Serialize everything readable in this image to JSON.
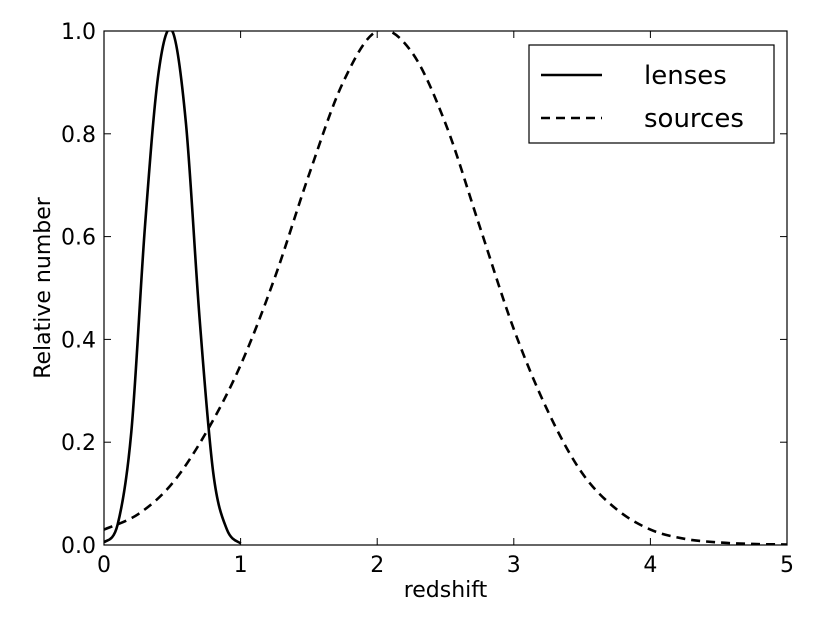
{
  "chart_data": {
    "type": "line",
    "xlabel": "redshift",
    "ylabel": "Relative number",
    "xlim": [
      0,
      5
    ],
    "ylim": [
      0.0,
      1.0
    ],
    "xticks": [
      "0",
      "1",
      "2",
      "3",
      "4",
      "5"
    ],
    "yticks": [
      "0.0",
      "0.2",
      "0.4",
      "0.6",
      "0.8",
      "1.0"
    ],
    "grid": false,
    "legend_position": "top-right",
    "series": [
      {
        "name": "lenses",
        "style": "solid",
        "color": "#000000",
        "x": [
          0.0,
          0.1,
          0.2,
          0.3,
          0.4,
          0.5,
          0.6,
          0.7,
          0.8,
          0.9,
          1.0
        ],
        "y": [
          0.005,
          0.04,
          0.22,
          0.62,
          0.92,
          1.0,
          0.82,
          0.44,
          0.14,
          0.03,
          0.003
        ]
      },
      {
        "name": "sources",
        "style": "dashed",
        "color": "#000000",
        "x": [
          0.0,
          0.25,
          0.5,
          0.75,
          1.0,
          1.25,
          1.5,
          1.75,
          2.0,
          2.25,
          2.5,
          2.75,
          3.0,
          3.25,
          3.5,
          3.75,
          4.0,
          4.25,
          4.5,
          4.75,
          5.0
        ],
        "y": [
          0.03,
          0.06,
          0.12,
          0.22,
          0.35,
          0.52,
          0.72,
          0.9,
          1.0,
          0.96,
          0.82,
          0.62,
          0.42,
          0.26,
          0.14,
          0.07,
          0.03,
          0.012,
          0.005,
          0.002,
          0.001
        ]
      }
    ]
  }
}
